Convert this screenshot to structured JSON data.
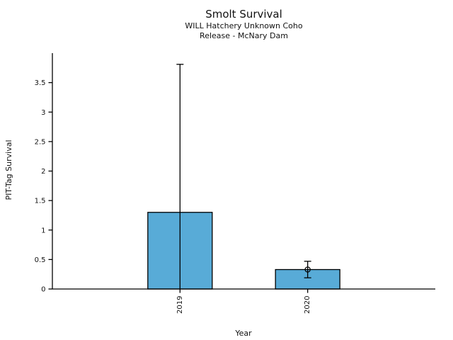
{
  "figure": {
    "background": "#ffffff"
  },
  "chart_data": {
    "type": "bar",
    "title": "Smolt Survival",
    "subtitle": [
      "WILL Hatchery Unknown Coho",
      "Release - McNary Dam"
    ],
    "xlabel": "Year",
    "ylabel": "PIT-Tag Survival",
    "categories": [
      "2019",
      "2020"
    ],
    "values": [
      1.3,
      0.33
    ],
    "error_low": [
      0,
      0.19
    ],
    "error_high": [
      3.81,
      0.47
    ],
    "point_markers": [
      null,
      0.33
    ],
    "ylim": [
      0,
      4
    ],
    "yticks": [
      0,
      0.5,
      1,
      1.5,
      2,
      2.5,
      3,
      3.5
    ],
    "ytick_labels": [
      "0",
      "0.5",
      "1",
      "1.5",
      "2",
      "2.5",
      "3",
      "3.5"
    ],
    "grid": false,
    "legend": null,
    "bar_color": "#58abd7",
    "bar_edge_color": "#000000",
    "error_color": "#000000",
    "axis_color": "#000000",
    "text_color": "#111111"
  }
}
